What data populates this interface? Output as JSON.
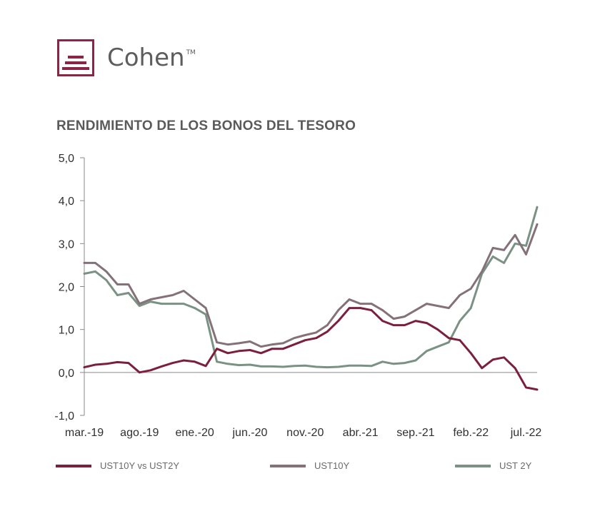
{
  "brand": {
    "name": "Cohen",
    "tm": "TM"
  },
  "chart_data": {
    "type": "line",
    "title": "RENDIMIENTO DE LOS BONOS DEL TESORO",
    "ylim": [
      -1.0,
      5.0
    ],
    "yticks": [
      "5,0",
      "4,0",
      "3,0",
      "2,0",
      "1,0",
      "0,0",
      "-1,0"
    ],
    "ytick_values": [
      5,
      4,
      3,
      2,
      1,
      0,
      -1
    ],
    "xticks": [
      "mar.-19",
      "ago.-19",
      "ene.-20",
      "jun.-20",
      "nov.-20",
      "abr.-21",
      "sep.-21",
      "feb.-22",
      "jul.-22"
    ],
    "grid": false,
    "legend_position": "bottom",
    "series": [
      {
        "name": "UST10Y vs UST2Y",
        "color": "#7b1f3d",
        "points": [
          [
            "mar.-19",
            0.12
          ],
          [
            "abr.-19",
            0.18
          ],
          [
            "may.-19",
            0.2
          ],
          [
            "jun.-19",
            0.24
          ],
          [
            "jul.-19",
            0.22
          ],
          [
            "ago.-19",
            0.0
          ],
          [
            "sep.-19",
            0.05
          ],
          [
            "oct.-19",
            0.14
          ],
          [
            "nov.-19",
            0.22
          ],
          [
            "dic.-19",
            0.28
          ],
          [
            "ene.-20",
            0.25
          ],
          [
            "feb.-20",
            0.15
          ],
          [
            "mar.-20",
            0.55
          ],
          [
            "abr.-20",
            0.45
          ],
          [
            "may.-20",
            0.5
          ],
          [
            "jun.-20",
            0.52
          ],
          [
            "jul.-20",
            0.45
          ],
          [
            "ago.-20",
            0.55
          ],
          [
            "sep.-20",
            0.55
          ],
          [
            "oct.-20",
            0.65
          ],
          [
            "nov.-20",
            0.75
          ],
          [
            "dic.-20",
            0.8
          ],
          [
            "ene.-21",
            0.95
          ],
          [
            "feb.-21",
            1.2
          ],
          [
            "mar.-21",
            1.5
          ],
          [
            "abr.-21",
            1.5
          ],
          [
            "may.-21",
            1.45
          ],
          [
            "jun.-21",
            1.2
          ],
          [
            "jul.-21",
            1.1
          ],
          [
            "ago.-21",
            1.1
          ],
          [
            "sep.-21",
            1.2
          ],
          [
            "oct.-21",
            1.15
          ],
          [
            "nov.-21",
            1.0
          ],
          [
            "dic.-21",
            0.8
          ],
          [
            "ene.-22",
            0.75
          ],
          [
            "feb.-22",
            0.45
          ],
          [
            "mar.-22",
            0.1
          ],
          [
            "abr.-22",
            0.3
          ],
          [
            "may.-22",
            0.35
          ],
          [
            "jun.-22",
            0.1
          ],
          [
            "jul.-22",
            -0.35
          ],
          [
            "ago.-22",
            -0.4
          ]
        ]
      },
      {
        "name": "UST10Y",
        "color": "#84717a",
        "points": [
          [
            "mar.-19",
            2.55
          ],
          [
            "abr.-19",
            2.55
          ],
          [
            "may.-19",
            2.35
          ],
          [
            "jun.-19",
            2.05
          ],
          [
            "jul.-19",
            2.05
          ],
          [
            "ago.-19",
            1.6
          ],
          [
            "sep.-19",
            1.7
          ],
          [
            "oct.-19",
            1.75
          ],
          [
            "nov.-19",
            1.8
          ],
          [
            "dic.-19",
            1.9
          ],
          [
            "ene.-20",
            1.7
          ],
          [
            "feb.-20",
            1.5
          ],
          [
            "mar.-20",
            0.7
          ],
          [
            "abr.-20",
            0.65
          ],
          [
            "may.-20",
            0.68
          ],
          [
            "jun.-20",
            0.72
          ],
          [
            "jul.-20",
            0.6
          ],
          [
            "ago.-20",
            0.65
          ],
          [
            "sep.-20",
            0.68
          ],
          [
            "oct.-20",
            0.8
          ],
          [
            "nov.-20",
            0.87
          ],
          [
            "dic.-20",
            0.93
          ],
          [
            "ene.-21",
            1.1
          ],
          [
            "feb.-21",
            1.45
          ],
          [
            "mar.-21",
            1.7
          ],
          [
            "abr.-21",
            1.6
          ],
          [
            "may.-21",
            1.6
          ],
          [
            "jun.-21",
            1.45
          ],
          [
            "jul.-21",
            1.25
          ],
          [
            "ago.-21",
            1.3
          ],
          [
            "sep.-21",
            1.45
          ],
          [
            "oct.-21",
            1.6
          ],
          [
            "nov.-21",
            1.55
          ],
          [
            "dic.-21",
            1.5
          ],
          [
            "ene.-22",
            1.8
          ],
          [
            "feb.-22",
            1.95
          ],
          [
            "mar.-22",
            2.35
          ],
          [
            "abr.-22",
            2.9
          ],
          [
            "may.-22",
            2.85
          ],
          [
            "jun.-22",
            3.2
          ],
          [
            "jul.-22",
            2.75
          ],
          [
            "ago.-22",
            3.45
          ]
        ]
      },
      {
        "name": "UST 2Y",
        "color": "#7a9284",
        "points": [
          [
            "mar.-19",
            2.3
          ],
          [
            "abr.-19",
            2.35
          ],
          [
            "may.-19",
            2.15
          ],
          [
            "jun.-19",
            1.8
          ],
          [
            "jul.-19",
            1.85
          ],
          [
            "ago.-19",
            1.55
          ],
          [
            "sep.-19",
            1.65
          ],
          [
            "oct.-19",
            1.6
          ],
          [
            "nov.-19",
            1.6
          ],
          [
            "dic.-19",
            1.6
          ],
          [
            "ene.-20",
            1.5
          ],
          [
            "feb.-20",
            1.35
          ],
          [
            "mar.-20",
            0.25
          ],
          [
            "abr.-20",
            0.2
          ],
          [
            "may.-20",
            0.17
          ],
          [
            "jun.-20",
            0.18
          ],
          [
            "jul.-20",
            0.14
          ],
          [
            "ago.-20",
            0.14
          ],
          [
            "sep.-20",
            0.13
          ],
          [
            "oct.-20",
            0.15
          ],
          [
            "nov.-20",
            0.16
          ],
          [
            "dic.-20",
            0.13
          ],
          [
            "ene.-21",
            0.12
          ],
          [
            "feb.-21",
            0.13
          ],
          [
            "mar.-21",
            0.16
          ],
          [
            "abr.-21",
            0.16
          ],
          [
            "may.-21",
            0.15
          ],
          [
            "jun.-21",
            0.25
          ],
          [
            "jul.-21",
            0.2
          ],
          [
            "ago.-21",
            0.22
          ],
          [
            "sep.-21",
            0.28
          ],
          [
            "oct.-21",
            0.5
          ],
          [
            "nov.-21",
            0.6
          ],
          [
            "dic.-21",
            0.7
          ],
          [
            "ene.-22",
            1.2
          ],
          [
            "feb.-22",
            1.5
          ],
          [
            "mar.-22",
            2.3
          ],
          [
            "abr.-22",
            2.7
          ],
          [
            "may.-22",
            2.55
          ],
          [
            "jun.-22",
            3.0
          ],
          [
            "jul.-22",
            2.95
          ],
          [
            "ago.-22",
            3.85
          ]
        ]
      }
    ]
  },
  "legend": [
    {
      "label": "UST10Y vs UST2Y",
      "color": "#7b1f3d"
    },
    {
      "label": "UST10Y",
      "color": "#84717a"
    },
    {
      "label": "UST 2Y",
      "color": "#7a9284"
    }
  ]
}
